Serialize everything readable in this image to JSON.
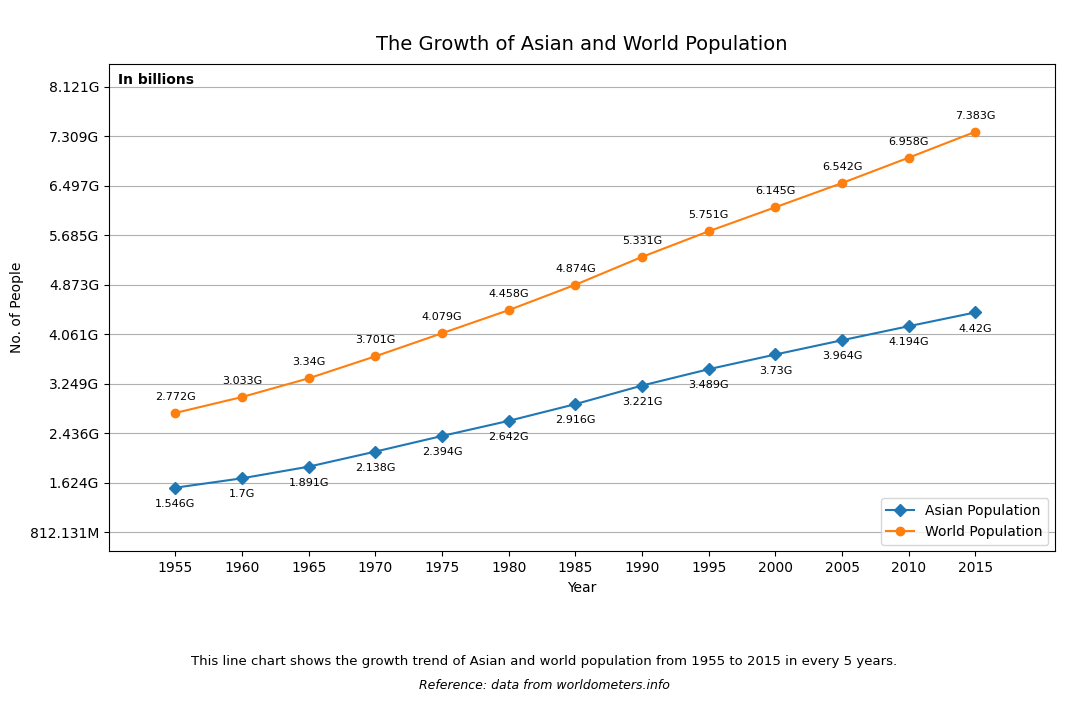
{
  "chart_data": {
    "type": "line",
    "title": "The Growth of Asian and World Population",
    "subtitle": "In billions",
    "x_label": "Year",
    "y_label": "No. of People",
    "annotations": [
      "This line chart shows the growth trend of Asian and world population from 1955 to 2015 in every 5 years.",
      "Reference: data from worldometers.info"
    ],
    "x": [
      1955,
      1960,
      1965,
      1970,
      1975,
      1980,
      1985,
      1990,
      1995,
      2000,
      2005,
      2010,
      2015
    ],
    "xlim": [
      1950,
      2021
    ],
    "xticks": [
      1955,
      1960,
      1965,
      1970,
      1975,
      1980,
      1985,
      1990,
      1995,
      2000,
      2005,
      2010,
      2015
    ],
    "ylim": [
      0.5,
      8.5
    ],
    "yticks": [
      {
        "value": 0.812131,
        "label": "812.131M"
      },
      {
        "value": 1.624,
        "label": "1.624G"
      },
      {
        "value": 2.436,
        "label": "2.436G"
      },
      {
        "value": 3.249,
        "label": "3.249G"
      },
      {
        "value": 4.061,
        "label": "4.061G"
      },
      {
        "value": 4.873,
        "label": "4.873G"
      },
      {
        "value": 5.685,
        "label": "5.685G"
      },
      {
        "value": 6.497,
        "label": "6.497G"
      },
      {
        "value": 7.309,
        "label": "7.309G"
      },
      {
        "value": 8.121,
        "label": "8.121G"
      }
    ],
    "grid": "y",
    "legend": "lower right",
    "data_labels": true,
    "series": [
      {
        "name": "Asian Population",
        "marker": "D",
        "values": [
          1.546,
          1.7,
          1.891,
          2.138,
          2.394,
          2.642,
          2.916,
          3.221,
          3.489,
          3.73,
          3.964,
          4.194,
          4.42
        ],
        "value_labels": [
          "1.546G",
          "1.7G",
          "1.891G",
          "2.138G",
          "2.394G",
          "2.642G",
          "2.916G",
          "3.221G",
          "3.489G",
          "3.73G",
          "3.964G",
          "4.194G",
          "4.42G"
        ]
      },
      {
        "name": "World Population",
        "marker": "o",
        "values": [
          2.772,
          3.033,
          3.34,
          3.701,
          4.079,
          4.458,
          4.874,
          5.331,
          5.751,
          6.145,
          6.542,
          6.958,
          7.383
        ],
        "value_labels": [
          "2.772G",
          "3.033G",
          "3.34G",
          "3.701G",
          "4.079G",
          "4.458G",
          "4.874G",
          "5.331G",
          "5.751G",
          "6.145G",
          "6.542G",
          "6.958G",
          "7.383G"
        ]
      }
    ]
  }
}
